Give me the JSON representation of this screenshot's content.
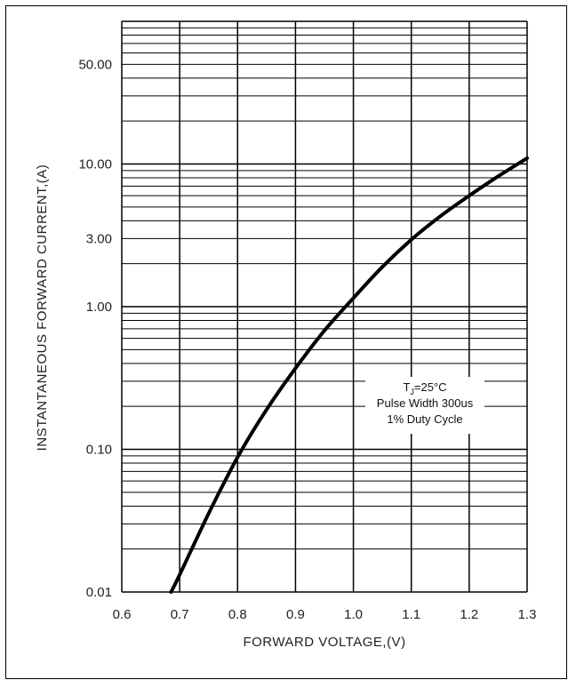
{
  "chart_data": {
    "type": "line",
    "title": "",
    "xlabel": "FORWARD VOLTAGE,(V)",
    "ylabel": "INSTANTANEOUS FORWARD CURRENT,(A)",
    "xlim": [
      0.6,
      1.3
    ],
    "ylim": [
      0.01,
      100
    ],
    "y_scale": "log",
    "grid": true,
    "x_ticks": [
      "0.6",
      "0.7",
      "0.8",
      "0.9",
      "1.0",
      "1.1",
      "1.2",
      "1.3"
    ],
    "y_ticks": [
      {
        "value": 0.01,
        "label": "0.01"
      },
      {
        "value": 0.1,
        "label": "0.10"
      },
      {
        "value": 1,
        "label": "1.00"
      },
      {
        "value": 3,
        "label": "3.00"
      },
      {
        "value": 10,
        "label": "10.00"
      },
      {
        "value": 50,
        "label": "50.00"
      }
    ],
    "series": [
      {
        "x": [
          0.685,
          0.7,
          0.75,
          0.8,
          0.85,
          0.9,
          0.95,
          1.0,
          1.05,
          1.1,
          1.15,
          1.2,
          1.25,
          1.3
        ],
        "y": [
          0.01,
          0.0132,
          0.0355,
          0.088,
          0.19,
          0.37,
          0.68,
          1.15,
          1.9,
          2.95,
          4.3,
          6.0,
          8.2,
          11.0
        ]
      }
    ],
    "annotation": {
      "line1_main": "T",
      "line1_sub": "J",
      "line1_rest": "=25°C",
      "line2": "Pulse Width 300us",
      "line3": "1% Duty Cycle"
    }
  }
}
